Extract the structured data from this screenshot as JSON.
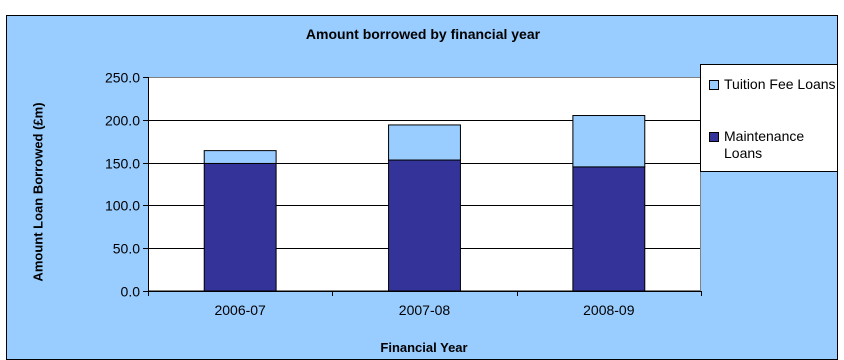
{
  "chart_data": {
    "type": "bar",
    "stacked": true,
    "title": "Amount borrowed by financial year",
    "xlabel": "Financial Year",
    "ylabel": "Amount Loan Borrowed (£m)",
    "categories": [
      "2006-07",
      "2007-08",
      "2008-09"
    ],
    "series": [
      {
        "name": "Maintenance Loans",
        "values": [
          149.0,
          153.0,
          145.0
        ],
        "color": "#333399"
      },
      {
        "name": "Tuition Fee Loans",
        "values": [
          15.0,
          41.0,
          60.0
        ],
        "color": "#99ccff"
      }
    ],
    "ylim": [
      0,
      250
    ],
    "yticks": [
      "0.0",
      "50.0",
      "100.0",
      "150.0",
      "200.0",
      "250.0"
    ],
    "grid": true,
    "legend": "right",
    "colors": {
      "background": "#99ccff",
      "plot_area": "#ffffff",
      "border": "#000000"
    }
  }
}
